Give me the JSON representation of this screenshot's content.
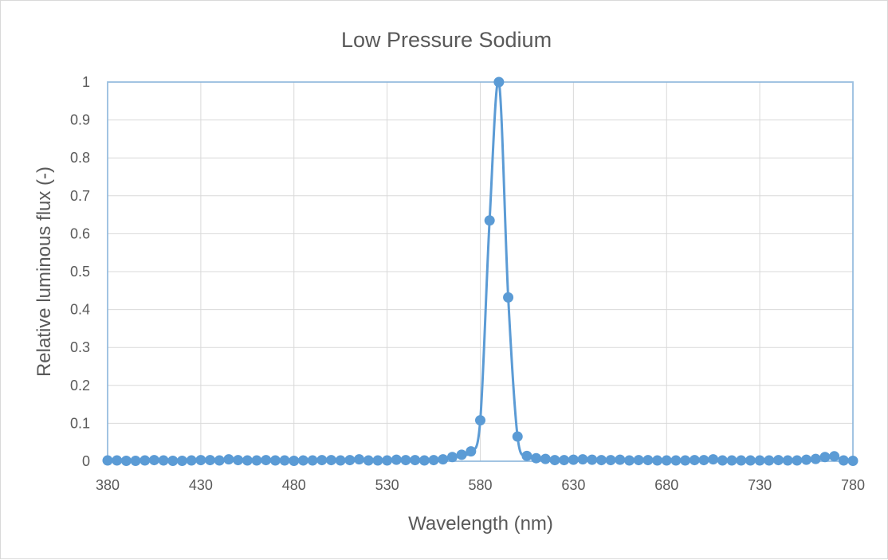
{
  "chart_data": {
    "type": "line",
    "title": "Low Pressure Sodium",
    "xlabel": "Wavelength (nm)",
    "ylabel": "Relative luminous flux (-)",
    "xlim": [
      380,
      780
    ],
    "ylim": [
      0,
      1
    ],
    "x_ticks": [
      "380",
      "430",
      "480",
      "530",
      "580",
      "630",
      "680",
      "730",
      "780"
    ],
    "y_ticks": [
      "0",
      "0.1",
      "0.2",
      "0.3",
      "0.4",
      "0.5",
      "0.6",
      "0.7",
      "0.8",
      "0.9",
      "1"
    ],
    "grid": true,
    "legend": false,
    "color": "#5b9bd5",
    "series": [
      {
        "x": [
          380,
          385,
          390,
          395,
          400,
          405,
          410,
          415,
          420,
          425,
          430,
          435,
          440,
          445,
          450,
          455,
          460,
          465,
          470,
          475,
          480,
          485,
          490,
          495,
          500,
          505,
          510,
          515,
          520,
          525,
          530,
          535,
          540,
          545,
          550,
          555,
          560,
          565,
          570,
          575,
          580,
          585,
          590,
          595,
          600,
          605,
          610,
          615,
          620,
          625,
          630,
          635,
          640,
          645,
          650,
          655,
          660,
          665,
          670,
          675,
          680,
          685,
          690,
          695,
          700,
          705,
          710,
          715,
          720,
          725,
          730,
          735,
          740,
          745,
          750,
          755,
          760,
          765,
          770,
          775,
          780
        ],
        "y": [
          0.002,
          0.002,
          0.001,
          0.001,
          0.002,
          0.003,
          0.002,
          0.001,
          0.001,
          0.002,
          0.003,
          0.003,
          0.002,
          0.005,
          0.003,
          0.002,
          0.002,
          0.003,
          0.002,
          0.002,
          0.001,
          0.002,
          0.002,
          0.003,
          0.003,
          0.002,
          0.003,
          0.005,
          0.002,
          0.002,
          0.002,
          0.004,
          0.003,
          0.003,
          0.002,
          0.003,
          0.005,
          0.011,
          0.017,
          0.026,
          0.108,
          0.635,
          1.0,
          0.432,
          0.065,
          0.014,
          0.008,
          0.006,
          0.003,
          0.003,
          0.004,
          0.005,
          0.004,
          0.003,
          0.003,
          0.004,
          0.002,
          0.003,
          0.003,
          0.002,
          0.002,
          0.002,
          0.002,
          0.003,
          0.003,
          0.005,
          0.002,
          0.002,
          0.002,
          0.002,
          0.002,
          0.002,
          0.003,
          0.002,
          0.002,
          0.004,
          0.006,
          0.011,
          0.013,
          0.002,
          0.001
        ]
      }
    ]
  }
}
